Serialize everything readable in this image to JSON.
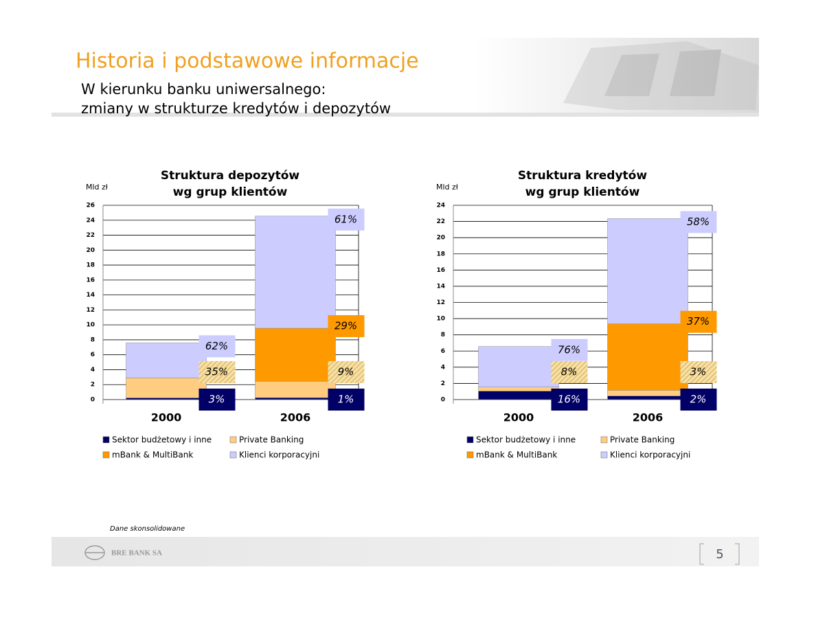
{
  "header": {
    "title": "Historia i podstawowe informacje",
    "subtitle": [
      "W kierunku banku uniwersalnego:",
      "zmiany w strukturze kredytów i depozytów"
    ]
  },
  "chart_data": [
    {
      "type": "bar",
      "stacked": true,
      "title": [
        "Struktura depozytów",
        "wg grup klientów"
      ],
      "ylabel": "Mld zł",
      "categories": [
        "2000",
        "2006"
      ],
      "ylim": [
        0,
        26
      ],
      "yticks": [
        0,
        2,
        4,
        6,
        8,
        10,
        12,
        14,
        16,
        18,
        20,
        22,
        24,
        26
      ],
      "grid": true,
      "series": [
        {
          "name": "Sektor budżetowy i inne",
          "color": "#000066",
          "values": [
            0.23,
            0.25
          ],
          "share_labels": [
            "3%",
            "1%"
          ]
        },
        {
          "name": "Private Banking",
          "color": "#ffcc80",
          "values": [
            2.66,
            2.2
          ],
          "share_labels": [
            "35%",
            "9%"
          ]
        },
        {
          "name": "mBank & MultiBank",
          "color": "#ff9900",
          "values": [
            0,
            7.1
          ],
          "share_labels": [
            null,
            "29%"
          ]
        },
        {
          "name": "Klienci korporacyjni",
          "color": "#ccccff",
          "values": [
            4.7,
            15.0
          ],
          "share_labels": [
            "62%",
            "61%"
          ]
        }
      ]
    },
    {
      "type": "bar",
      "stacked": true,
      "title": [
        "Struktura kredytów",
        "wg grup klientów"
      ],
      "ylabel": "Mld zł",
      "categories": [
        "2000",
        "2006"
      ],
      "ylim": [
        0,
        24
      ],
      "yticks": [
        0,
        2,
        4,
        6,
        8,
        10,
        12,
        14,
        16,
        18,
        20,
        22,
        24
      ],
      "grid": true,
      "series": [
        {
          "name": "Sektor budżetowy i inne",
          "color": "#000066",
          "values": [
            1.05,
            0.45
          ],
          "share_labels": [
            "16%",
            "2%"
          ]
        },
        {
          "name": "Private Banking",
          "color": "#ffcc80",
          "values": [
            0.5,
            0.7
          ],
          "share_labels": [
            "8%",
            "3%"
          ]
        },
        {
          "name": "mBank & MultiBank",
          "color": "#ff9900",
          "values": [
            0,
            8.2
          ],
          "share_labels": [
            null,
            "37%"
          ]
        },
        {
          "name": "Klienci korporacyjni",
          "color": "#ccccff",
          "values": [
            5.0,
            13.0
          ],
          "share_labels": [
            "76%",
            "58%"
          ]
        }
      ]
    }
  ],
  "note": "Dane skonsolidowane",
  "footer": {
    "bank": "BRE BANK SA",
    "page": "5"
  }
}
